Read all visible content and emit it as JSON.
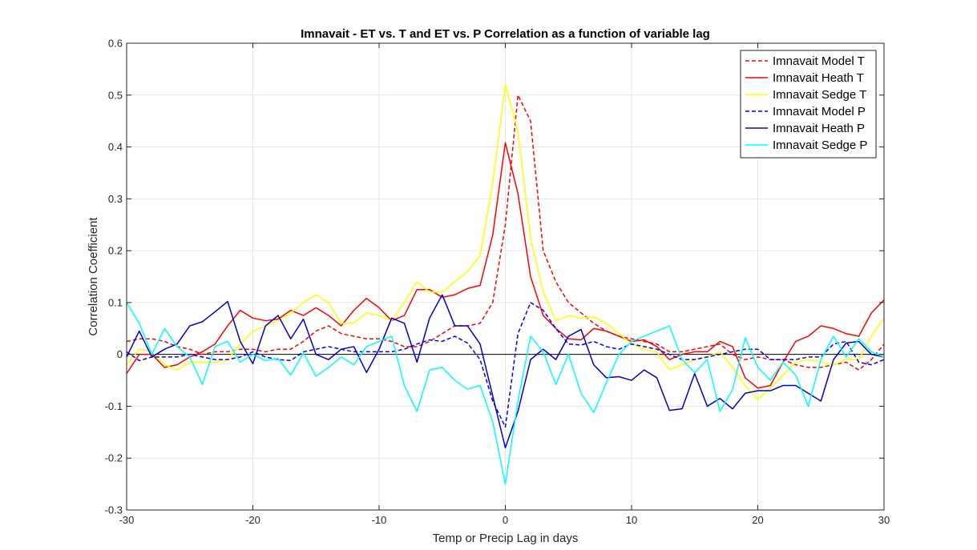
{
  "chart_data": {
    "type": "line",
    "title": "Imnavait - ET vs. T and ET vs. P Correlation as a function of variable lag",
    "xlabel": "Temp or Precip Lag in days",
    "ylabel": "Correlation Coefficient",
    "xlim": [
      -30,
      30
    ],
    "ylim": [
      -0.3,
      0.6
    ],
    "xticks": [
      -30,
      -20,
      -10,
      0,
      10,
      20,
      30
    ],
    "xtick_labels": [
      "-30",
      "-20",
      "-10",
      "0",
      "10",
      "20",
      "30"
    ],
    "yticks": [
      -0.3,
      -0.2,
      -0.1,
      0,
      0.1,
      0.2,
      0.3,
      0.4,
      0.5,
      0.6
    ],
    "ytick_labels": [
      "-0.3",
      "-0.2",
      "-0.1",
      "0",
      "0.1",
      "0.2",
      "0.3",
      "0.4",
      "0.5",
      "0.6"
    ],
    "grid": true,
    "legend_position": "top-right",
    "x": [
      -30,
      -29,
      -28,
      -27,
      -26,
      -25,
      -24,
      -23,
      -22,
      -21,
      -20,
      -19,
      -18,
      -17,
      -16,
      -15,
      -14,
      -13,
      -12,
      -11,
      -10,
      -9,
      -8,
      -7,
      -6,
      -5,
      -4,
      -3,
      -2,
      -1,
      0,
      1,
      2,
      3,
      4,
      5,
      6,
      7,
      8,
      9,
      10,
      11,
      12,
      13,
      14,
      15,
      16,
      17,
      18,
      19,
      20,
      21,
      22,
      23,
      24,
      25,
      26,
      27,
      28,
      29,
      30
    ],
    "series": [
      {
        "name": "Imnavait Model T",
        "color": "#ff0000",
        "dash": true,
        "values": [
          0.025,
          0.03,
          0.03,
          0.025,
          0.015,
          0.01,
          0.0,
          0.005,
          0.005,
          0.01,
          0.01,
          0.005,
          0.01,
          0.01,
          0.025,
          0.045,
          0.055,
          0.04,
          0.035,
          0.03,
          0.03,
          0.025,
          0.015,
          0.015,
          0.025,
          0.04,
          0.055,
          0.055,
          0.06,
          0.1,
          0.25,
          0.5,
          0.45,
          0.2,
          0.14,
          0.1,
          0.08,
          0.06,
          0.045,
          0.035,
          0.03,
          0.025,
          0.02,
          0.005,
          0.005,
          0.01,
          0.015,
          0.02,
          0.0,
          -0.01,
          -0.005,
          -0.01,
          -0.01,
          -0.02,
          -0.025,
          -0.025,
          -0.02,
          -0.015,
          -0.03,
          -0.01,
          0.02
        ]
      },
      {
        "name": "Imnavait Heath T",
        "color": "#ff0000",
        "dash": false,
        "values": [
          -0.037,
          0.0,
          0.0,
          -0.025,
          -0.02,
          -0.005,
          0.005,
          0.02,
          0.055,
          0.085,
          0.07,
          0.065,
          0.068,
          0.085,
          0.075,
          0.09,
          0.075,
          0.055,
          0.085,
          0.108,
          0.09,
          0.065,
          0.075,
          0.125,
          0.125,
          0.11,
          0.115,
          0.127,
          0.133,
          0.23,
          0.408,
          0.31,
          0.15,
          0.075,
          0.05,
          0.03,
          0.028,
          0.05,
          0.045,
          0.035,
          0.025,
          0.028,
          0.015,
          -0.01,
          0.0,
          0.005,
          0.005,
          0.025,
          0.015,
          -0.045,
          -0.065,
          -0.06,
          -0.015,
          0.025,
          0.035,
          0.055,
          0.05,
          0.04,
          0.035,
          0.08,
          0.105
        ]
      },
      {
        "name": "Imnavait Sedge T",
        "color": "#ffff00",
        "dash": false,
        "values": [
          -0.02,
          0.01,
          0.005,
          -0.02,
          -0.03,
          -0.015,
          -0.015,
          -0.015,
          -0.01,
          0.02,
          0.045,
          0.055,
          0.065,
          0.08,
          0.1,
          0.115,
          0.1,
          0.06,
          0.06,
          0.08,
          0.075,
          0.065,
          0.1,
          0.14,
          0.12,
          0.12,
          0.14,
          0.16,
          0.19,
          0.33,
          0.52,
          0.43,
          0.225,
          0.12,
          0.065,
          0.075,
          0.07,
          0.072,
          0.06,
          0.04,
          0.02,
          0.01,
          0.005,
          -0.03,
          -0.02,
          -0.01,
          -0.005,
          0.005,
          -0.025,
          -0.06,
          -0.087,
          -0.065,
          -0.04,
          -0.015,
          -0.01,
          -0.015,
          -0.02,
          -0.01,
          -0.01,
          0.035,
          0.07
        ]
      },
      {
        "name": "Imnavait Model P",
        "color": "#0000ff",
        "dash": true,
        "values": [
          0.005,
          -0.012,
          -0.005,
          -0.005,
          -0.005,
          0.0,
          -0.005,
          -0.01,
          -0.01,
          -0.005,
          0.005,
          -0.005,
          -0.01,
          -0.012,
          0.005,
          0.01,
          0.015,
          0.01,
          0.005,
          0.005,
          0.005,
          0.005,
          0.01,
          0.02,
          0.028,
          0.025,
          0.035,
          0.022,
          -0.01,
          -0.09,
          -0.14,
          0.04,
          0.1,
          0.085,
          0.05,
          0.02,
          0.018,
          0.025,
          0.015,
          0.01,
          0.02,
          0.015,
          0.01,
          0.0,
          -0.01,
          -0.01,
          -0.005,
          0.0,
          0.005,
          0.01,
          0.01,
          -0.01,
          -0.01,
          -0.01,
          -0.005,
          -0.005,
          0.02,
          0.025,
          -0.015,
          -0.02,
          -0.01
        ]
      },
      {
        "name": "Imnavait Heath P",
        "color": "#0000cd",
        "dash": false,
        "values": [
          -0.005,
          0.045,
          -0.005,
          0.01,
          0.02,
          0.055,
          0.063,
          0.082,
          0.102,
          0.025,
          -0.018,
          0.055,
          0.075,
          0.03,
          0.068,
          0.0,
          -0.01,
          0.01,
          0.015,
          -0.035,
          0.01,
          0.07,
          0.06,
          -0.015,
          0.07,
          0.115,
          0.055,
          0.055,
          0.02,
          -0.08,
          -0.18,
          -0.11,
          -0.01,
          0.01,
          -0.01,
          0.035,
          0.048,
          -0.02,
          -0.045,
          -0.043,
          -0.05,
          -0.03,
          -0.045,
          -0.108,
          -0.105,
          -0.037,
          -0.1,
          -0.085,
          -0.105,
          -0.075,
          -0.07,
          -0.07,
          -0.06,
          -0.06,
          -0.075,
          -0.09,
          -0.01,
          0.022,
          0.025,
          0.0,
          -0.005
        ]
      },
      {
        "name": "Imnavait Sedge P",
        "color": "#00ffff",
        "dash": false,
        "values": [
          0.1,
          0.06,
          0.0,
          0.05,
          0.015,
          -0.005,
          -0.058,
          0.015,
          0.025,
          -0.015,
          0.0,
          -0.012,
          -0.008,
          -0.04,
          0.003,
          -0.042,
          -0.025,
          -0.005,
          -0.02,
          0.015,
          0.025,
          0.035,
          -0.06,
          -0.11,
          -0.03,
          -0.025,
          -0.05,
          -0.067,
          -0.06,
          -0.13,
          -0.25,
          -0.09,
          0.035,
          0.005,
          -0.058,
          0.0,
          -0.075,
          -0.112,
          -0.055,
          0.0,
          0.025,
          0.035,
          0.045,
          0.055,
          -0.01,
          -0.035,
          -0.01,
          -0.11,
          -0.068,
          0.032,
          -0.025,
          -0.05,
          -0.015,
          -0.04,
          -0.1,
          -0.01,
          0.035,
          -0.005,
          0.03,
          0.005,
          -0.005
        ]
      }
    ]
  }
}
